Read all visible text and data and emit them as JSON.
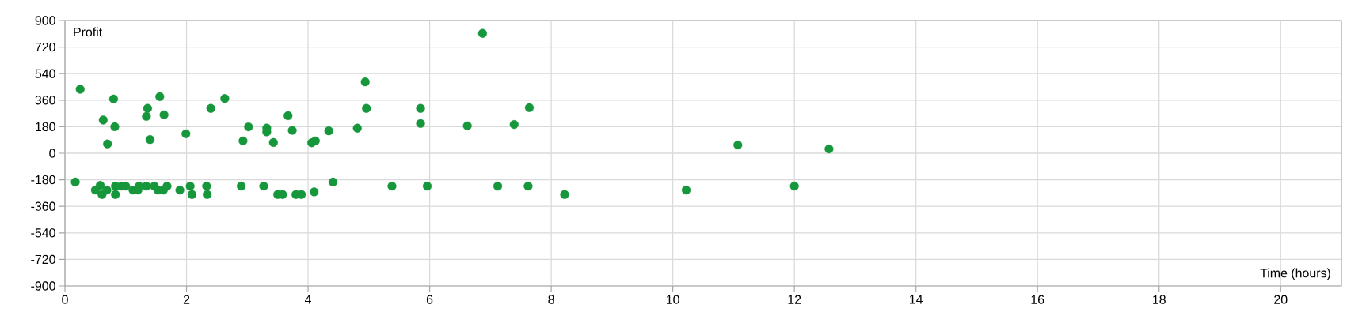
{
  "chart_data": {
    "type": "scatter",
    "xlabel": "Time (hours)",
    "ylabel": "Profit",
    "color": "#17973c",
    "marker": "circle",
    "grid": true,
    "xlim": [
      0,
      21
    ],
    "xticks": [
      0,
      2,
      4,
      6,
      8,
      10,
      12,
      14,
      16,
      18,
      20
    ],
    "ylim": [
      -900,
      900
    ],
    "yticks": [
      -900,
      -720,
      -540,
      -360,
      -180,
      0,
      180,
      360,
      540,
      720,
      900
    ],
    "x": [
      0.17,
      0.25,
      0.5,
      0.58,
      0.61,
      0.63,
      0.69,
      0.7,
      0.8,
      0.82,
      0.83,
      0.83,
      0.93,
      1.0,
      1.12,
      1.2,
      1.22,
      1.34,
      1.34,
      1.36,
      1.4,
      1.47,
      1.53,
      1.56,
      1.62,
      1.63,
      1.68,
      1.89,
      1.99,
      2.06,
      2.09,
      2.33,
      2.34,
      2.4,
      2.63,
      2.9,
      2.93,
      3.02,
      3.27,
      3.32,
      3.32,
      3.43,
      3.5,
      3.58,
      3.67,
      3.74,
      3.8,
      3.89,
      4.06,
      4.1,
      4.12,
      4.34,
      4.41,
      4.81,
      4.94,
      4.96,
      5.38,
      5.85,
      5.85,
      5.96,
      6.62,
      6.87,
      7.12,
      7.39,
      7.62,
      7.64,
      8.22,
      10.22,
      11.07,
      12.0,
      12.57
    ],
    "values": [
      -195,
      434,
      -250,
      -218,
      -280,
      225,
      -250,
      63,
      368,
      180,
      -223,
      -280,
      -223,
      -223,
      -250,
      -250,
      -223,
      -223,
      250,
      304,
      93,
      -223,
      -250,
      384,
      -250,
      261,
      -223,
      -250,
      132,
      -223,
      -280,
      -223,
      -280,
      304,
      371,
      -223,
      84,
      179,
      -223,
      171,
      145,
      73,
      -280,
      -280,
      255,
      155,
      -280,
      -280,
      71,
      -262,
      84,
      152,
      -195,
      170,
      484,
      304,
      -223,
      202,
      304,
      -223,
      186,
      813,
      -223,
      195,
      -223,
      309,
      -280,
      -250,
      56,
      -223,
      29
    ]
  }
}
